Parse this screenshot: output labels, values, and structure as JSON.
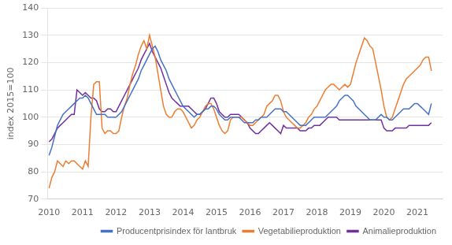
{
  "chart_data": {
    "type": "line",
    "ylabel": "index 2015=100",
    "x": [
      2010,
      2010.083333,
      2010.166667,
      2010.25,
      2010.333333,
      2010.416667,
      2010.5,
      2010.583333,
      2010.666667,
      2010.75,
      2010.833333,
      2010.916667,
      2011,
      2011.083333,
      2011.166667,
      2011.25,
      2011.333333,
      2011.416667,
      2011.5,
      2011.583333,
      2011.666667,
      2011.75,
      2011.833333,
      2011.916667,
      2012,
      2012.083333,
      2012.166667,
      2012.25,
      2012.333333,
      2012.416667,
      2012.5,
      2012.583333,
      2012.666667,
      2012.75,
      2012.833333,
      2012.916667,
      2013,
      2013.083333,
      2013.166667,
      2013.25,
      2013.333333,
      2013.416667,
      2013.5,
      2013.583333,
      2013.666667,
      2013.75,
      2013.833333,
      2013.916667,
      2014,
      2014.083333,
      2014.166667,
      2014.25,
      2014.333333,
      2014.416667,
      2014.5,
      2014.583333,
      2014.666667,
      2014.75,
      2014.833333,
      2014.916667,
      2015,
      2015.083333,
      2015.166667,
      2015.25,
      2015.333333,
      2015.416667,
      2015.5,
      2015.583333,
      2015.666667,
      2015.75,
      2015.833333,
      2015.916667,
      2016,
      2016.083333,
      2016.166667,
      2016.25,
      2016.333333,
      2016.416667,
      2016.5,
      2016.583333,
      2016.666667,
      2016.75,
      2016.833333,
      2016.916667,
      2017,
      2017.083333,
      2017.166667,
      2017.25,
      2017.333333,
      2017.416667,
      2017.5,
      2017.583333,
      2017.666667,
      2017.75,
      2017.833333,
      2017.916667,
      2018,
      2018.083333,
      2018.166667,
      2018.25,
      2018.333333,
      2018.416667,
      2018.5,
      2018.583333,
      2018.666667,
      2018.75,
      2018.833333,
      2018.916667,
      2019,
      2019.083333,
      2019.166667,
      2019.25,
      2019.333333,
      2019.416667,
      2019.5,
      2019.583333,
      2019.666667,
      2019.75,
      2019.833333,
      2019.916667,
      2020,
      2020.083333,
      2020.166667,
      2020.25,
      2020.333333,
      2020.416667,
      2020.5,
      2020.583333,
      2020.666667,
      2020.75,
      2020.833333,
      2020.916667,
      2021,
      2021.083333,
      2021.166667,
      2021.25,
      2021.333333,
      2021.416667
    ],
    "series": [
      {
        "name": "Producentprisindex för lantbruk",
        "color": "#4472C4",
        "values": [
          86,
          89,
          93,
          97,
          99,
          101,
          102,
          103,
          104,
          105,
          106,
          107,
          107,
          108,
          107,
          105,
          103,
          101,
          101,
          101,
          101,
          100,
          100,
          100,
          100,
          101,
          102,
          104,
          106,
          108,
          110,
          112,
          114,
          117,
          119,
          121,
          123,
          125,
          126,
          124,
          121,
          119,
          117,
          114,
          112,
          110,
          108,
          106,
          104,
          103,
          102,
          101,
          100,
          101,
          101,
          102,
          103,
          103,
          104,
          104,
          103,
          101,
          100,
          99,
          99,
          100,
          100,
          100,
          100,
          99,
          98,
          98,
          98,
          98,
          99,
          99,
          100,
          100,
          100,
          101,
          102,
          103,
          103,
          103,
          102,
          102,
          101,
          100,
          99,
          98,
          97,
          97,
          97,
          98,
          99,
          100,
          100,
          100,
          100,
          100,
          101,
          102,
          103,
          104,
          106,
          107,
          108,
          108,
          107,
          106,
          104,
          103,
          102,
          101,
          100,
          99,
          99,
          99,
          100,
          101,
          100,
          100,
          99,
          99,
          100,
          101,
          102,
          103,
          103,
          103,
          104,
          105,
          105,
          104,
          103,
          102,
          101,
          105
        ]
      },
      {
        "name": "Vegetabilieproduktion",
        "color": "#ED7D31",
        "values": [
          74,
          78,
          80,
          84,
          83,
          82,
          84,
          83,
          84,
          84,
          83,
          82,
          81,
          84,
          82,
          100,
          112,
          113,
          113,
          96,
          94,
          95,
          95,
          94,
          94,
          95,
          100,
          104,
          107,
          112,
          116,
          119,
          123,
          126,
          128,
          125,
          130,
          126,
          122,
          116,
          110,
          104,
          101,
          100,
          100,
          102,
          103,
          103,
          102,
          100,
          98,
          96,
          97,
          99,
          100,
          102,
          104,
          105,
          105,
          103,
          100,
          97,
          95,
          94,
          95,
          99,
          100,
          100,
          100,
          100,
          99,
          98,
          97,
          97,
          98,
          99,
          100,
          101,
          104,
          105,
          106,
          108,
          108,
          106,
          102,
          100,
          99,
          98,
          97,
          96,
          96,
          97,
          98,
          100,
          101,
          103,
          104,
          106,
          108,
          110,
          111,
          112,
          112,
          111,
          110,
          111,
          112,
          111,
          112,
          116,
          120,
          123,
          126,
          129,
          128,
          126,
          125,
          120,
          115,
          110,
          104,
          100,
          99,
          100,
          103,
          106,
          109,
          112,
          114,
          115,
          116,
          117,
          118,
          119,
          121,
          122,
          122,
          117
        ]
      },
      {
        "name": "Animalieproduktion",
        "color": "#7030A0",
        "values": [
          91,
          92,
          94,
          96,
          97,
          98,
          99,
          100,
          101,
          101,
          110,
          109,
          108,
          109,
          108,
          107,
          107,
          106,
          103,
          102,
          102,
          103,
          103,
          102,
          102,
          104,
          106,
          108,
          110,
          112,
          114,
          116,
          118,
          121,
          123,
          125,
          127,
          124,
          122,
          120,
          118,
          115,
          112,
          109,
          107,
          106,
          105,
          104,
          104,
          104,
          104,
          103,
          102,
          101,
          101,
          102,
          103,
          105,
          107,
          107,
          105,
          102,
          101,
          100,
          100,
          101,
          101,
          101,
          101,
          100,
          99,
          98,
          96,
          95,
          94,
          94,
          95,
          96,
          97,
          98,
          97,
          96,
          95,
          94,
          97,
          96,
          96,
          96,
          96,
          96,
          95,
          95,
          95,
          96,
          96,
          97,
          97,
          97,
          98,
          99,
          100,
          100,
          100,
          100,
          99,
          99,
          99,
          99,
          99,
          99,
          99,
          99,
          99,
          99,
          99,
          99,
          99,
          99,
          99,
          99,
          96,
          95,
          95,
          95,
          96,
          96,
          96,
          96,
          96,
          97,
          97,
          97,
          97,
          97,
          97,
          97,
          97,
          98
        ]
      }
    ],
    "xlim": [
      2009.95,
      2021.75
    ],
    "xticks": [
      2010,
      2011,
      2012,
      2013,
      2014,
      2015,
      2016,
      2017,
      2018,
      2019,
      2020,
      2021
    ],
    "ylim": [
      70,
      140
    ],
    "yticks": [
      70,
      80,
      90,
      100,
      110,
      120,
      130,
      140
    ],
    "grid": "y",
    "legend": "lower right"
  }
}
